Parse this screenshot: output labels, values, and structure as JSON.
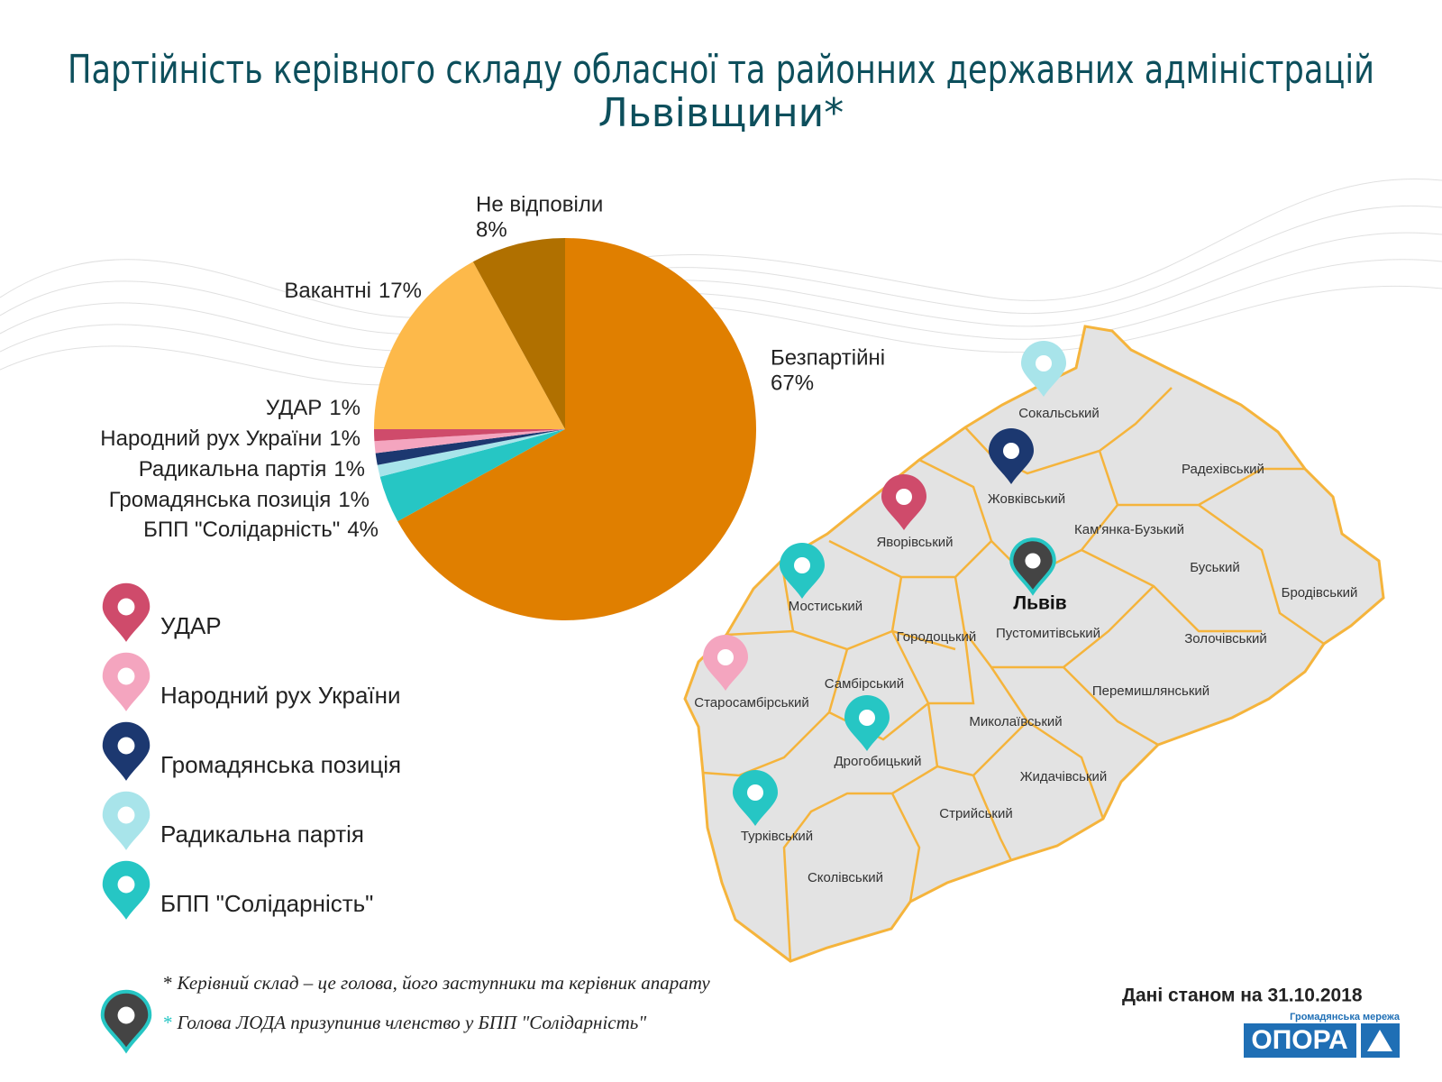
{
  "header": {
    "title_lines": [
      "Партійність керівного складу обласної та районних державних адміністрацій",
      "Львівщини*"
    ]
  },
  "chart_data": {
    "type": "pie",
    "categories": [
      "Безпартійні",
      "БПП \"Солідарність\"",
      "Радикальна партія",
      "Громадянська позиція",
      "Народний рух України",
      "УДАР",
      "Вакантні",
      "Не відповіли"
    ],
    "values": [
      67,
      4,
      1,
      1,
      1,
      1,
      17,
      8
    ],
    "value_labels": [
      "67%",
      "4%",
      "1%",
      "1%",
      "1%",
      "1%",
      "17%",
      "8%"
    ],
    "colors": [
      "#e07f00",
      "#26c6c4",
      "#a8e4ea",
      "#1c3870",
      "#f4a5bf",
      "#cf4b6b",
      "#fdb94a",
      "#b07000"
    ]
  },
  "map": {
    "districts": [
      "Сокальський",
      "Радехівський",
      "Жовківський",
      "Яворівський",
      "Кам'янка-Бузький",
      "Буський",
      "Бродівський",
      "Мостиський",
      "Городоцький",
      "Пустомитівський",
      "Золочівський",
      "Самбірський",
      "Старосамбірський",
      "Перемишлянський",
      "Миколаївський",
      "Дрогобицький",
      "Жидачівський",
      "Стрийський",
      "Турківський",
      "Сколівський"
    ],
    "city": "Львів"
  },
  "footnotes": [
    {
      "marker": "*",
      "text": "Керівний склад – це голова, його заступники та керівник апарату"
    },
    {
      "marker": "*",
      "text": "Голова ЛОДА призупинив членство у БПП \"Солідарність\""
    }
  ],
  "date_note": "Дані станом на 31.10.2018",
  "logo": {
    "name": "ОПОРА",
    "tagline": "Громадянська мережа"
  }
}
